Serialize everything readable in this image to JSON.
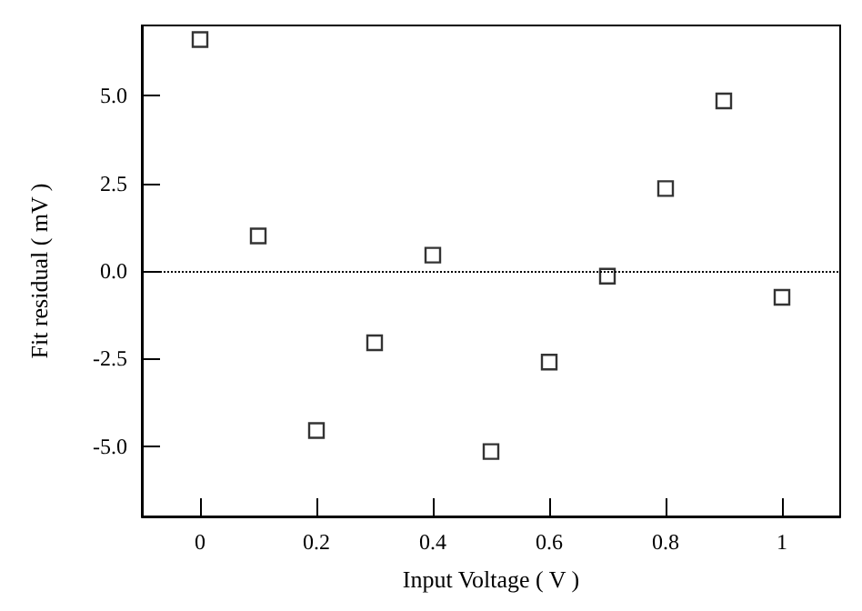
{
  "chart_data": {
    "type": "scatter",
    "xlabel": "Input Voltage ( V )",
    "ylabel": "Fit residual ( mV )",
    "x": [
      0,
      0.1,
      0.2,
      0.3,
      0.4,
      0.5,
      0.6,
      0.7,
      0.8,
      0.9,
      1.0
    ],
    "series": [
      {
        "color": "#000000",
        "values": [
          6.6,
          1.0,
          -4.55,
          -2.05,
          0.45,
          -5.15,
          -2.6,
          -0.15,
          2.35,
          4.85,
          -0.75
        ]
      }
    ],
    "marker": "square",
    "grid": false,
    "xlim": [
      -0.1,
      1.1
    ],
    "xticks": [
      0,
      0.2,
      0.4,
      0.6,
      0.8,
      1
    ],
    "ylim": [
      -7,
      7
    ],
    "yticks": [
      {
        "value": -5,
        "label": "-5.0"
      },
      {
        "value": -2.5,
        "label": "-2.5"
      },
      {
        "value": 0,
        "label": "0.0"
      },
      {
        "value": 2.5,
        "label": "2.5"
      },
      {
        "value": 5,
        "label": "5.0"
      }
    ],
    "ref_lines": [
      {
        "axis": "y",
        "value": 0,
        "line_style": "dotted",
        "color": "#000000"
      }
    ]
  }
}
